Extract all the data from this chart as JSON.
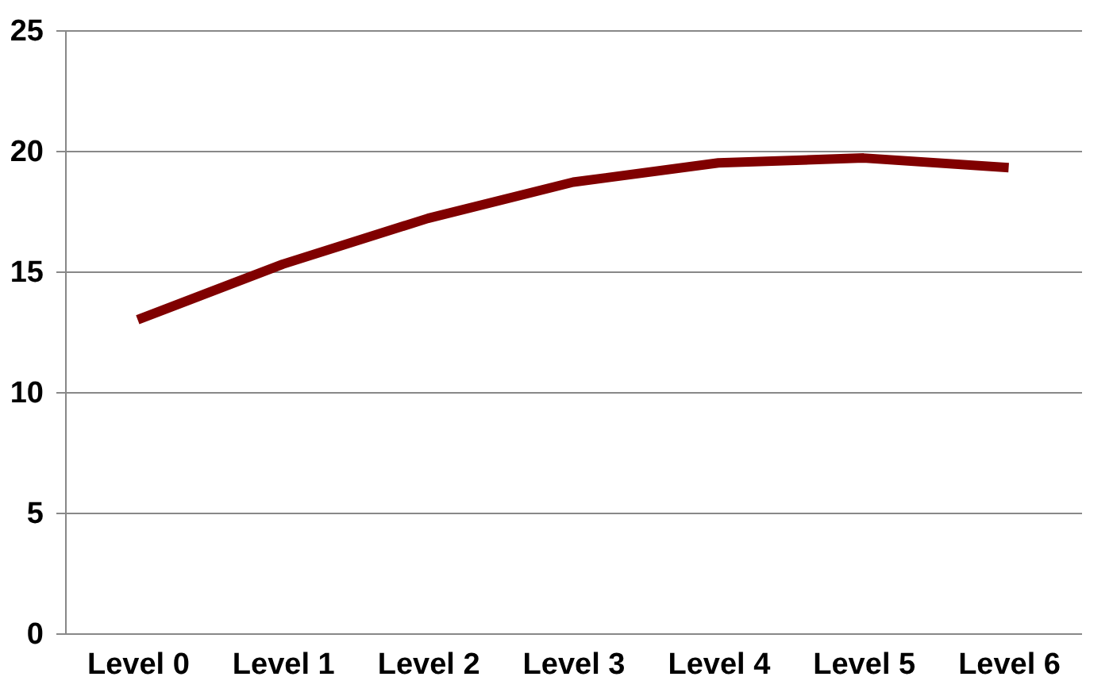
{
  "chart_data": {
    "type": "line",
    "categories": [
      "Level 0",
      "Level 1",
      "Level 2",
      "Level 3",
      "Level 4",
      "Level 5",
      "Level 6"
    ],
    "series": [
      {
        "color": "#800000",
        "values": [
          13.0,
          15.3,
          17.2,
          18.7,
          19.5,
          19.7,
          19.3
        ]
      }
    ],
    "ylim": [
      0,
      25
    ],
    "yticks": [
      0,
      5,
      10,
      15,
      20,
      25
    ],
    "grid": "y",
    "marker": "none",
    "line_style": "solid"
  }
}
